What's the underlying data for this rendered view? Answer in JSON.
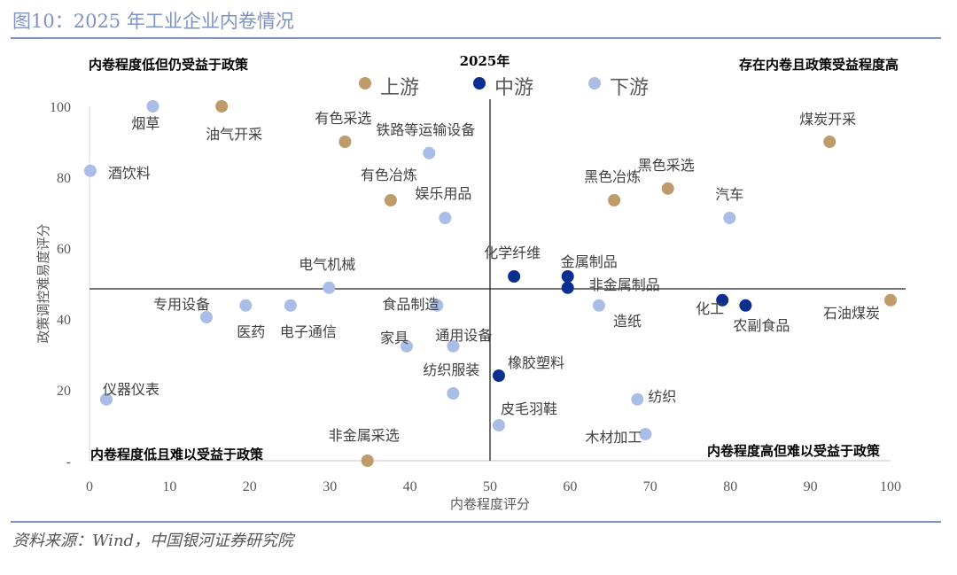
{
  "title": "图10：2025 年工业企业内卷情况",
  "source": "资料来源：Wind，中国银河证券研究院",
  "chart_data": {
    "type": "scatter",
    "title": "2025年",
    "xlabel": "内卷程度评分",
    "ylabel": "政策调控难易度评分",
    "xlim": [
      0,
      100
    ],
    "ylim": [
      0,
      100
    ],
    "xticks": [
      "0",
      "10",
      "20",
      "30",
      "40",
      "50",
      "60",
      "70",
      "80",
      "90",
      "100"
    ],
    "yticks": [
      "-",
      "20",
      "40",
      "60",
      "80",
      "100"
    ],
    "divider": {
      "x": 50,
      "y": 48.5
    },
    "quadrants": {
      "top_left": "内卷程度低但仍受益于政策",
      "top_right": "存在内卷且政策受益程度高",
      "bottom_left": "内卷程度低且难以受益于政策",
      "bottom_right": "内卷程度高但难以受益于政策"
    },
    "legend": [
      {
        "name": "上游",
        "color": "#bf9b6b"
      },
      {
        "name": "中游",
        "color": "#0b2f8e"
      },
      {
        "name": "下游",
        "color": "#a9bde6"
      }
    ],
    "points": [
      {
        "name": "烟草",
        "x": 7.9,
        "y": 100,
        "group": 2
      },
      {
        "name": "油气开采",
        "x": 16.5,
        "y": 100,
        "group": 0
      },
      {
        "name": "有色采选",
        "x": 31.9,
        "y": 90,
        "group": 0
      },
      {
        "name": "铁路等运输设备",
        "x": 42.4,
        "y": 86.8,
        "group": 2
      },
      {
        "name": "酒饮料",
        "x": 0.1,
        "y": 81.8,
        "group": 2
      },
      {
        "name": "有色冶炼",
        "x": 37.6,
        "y": 73.5,
        "group": 0
      },
      {
        "name": "娱乐用品",
        "x": 44.4,
        "y": 68.5,
        "group": 2
      },
      {
        "name": "煤炭开采",
        "x": 92.4,
        "y": 90,
        "group": 0
      },
      {
        "name": "黑色采选",
        "x": 72.2,
        "y": 76.8,
        "group": 0
      },
      {
        "name": "黑色冶炼",
        "x": 65.5,
        "y": 73.5,
        "group": 0
      },
      {
        "name": "汽车",
        "x": 79.9,
        "y": 68.5,
        "group": 2
      },
      {
        "name": "化学纤维",
        "x": 53,
        "y": 52,
        "group": 1
      },
      {
        "name": "金属制品",
        "x": 59.7,
        "y": 52,
        "group": 1
      },
      {
        "name": "非金属制品",
        "x": 59.7,
        "y": 48.8,
        "group": 1
      },
      {
        "name": "电气机械",
        "x": 29.9,
        "y": 48.8,
        "group": 2
      },
      {
        "name": "食品制造",
        "x": 43.4,
        "y": 43.8,
        "group": 2
      },
      {
        "name": "造纸",
        "x": 63.6,
        "y": 43.8,
        "group": 2
      },
      {
        "name": "化工",
        "x": 79,
        "y": 45.3,
        "group": 1
      },
      {
        "name": "农副食品",
        "x": 81.9,
        "y": 43.8,
        "group": 1
      },
      {
        "name": "石油煤炭",
        "x": 100,
        "y": 45.3,
        "group": 0
      },
      {
        "name": "专用设备",
        "x": 14.6,
        "y": 40.5,
        "group": 2
      },
      {
        "name": "医药",
        "x": 19.5,
        "y": 43.8,
        "group": 2
      },
      {
        "name": "电子通信",
        "x": 25.1,
        "y": 43.8,
        "group": 2
      },
      {
        "name": "家具",
        "x": 39.6,
        "y": 32.3,
        "group": 2
      },
      {
        "name": "通用设备",
        "x": 45.4,
        "y": 32.3,
        "group": 2
      },
      {
        "name": "纺织服装",
        "x": 45.4,
        "y": 19,
        "group": 2
      },
      {
        "name": "橡胶塑料",
        "x": 51.1,
        "y": 24,
        "group": 1
      },
      {
        "name": "纺织",
        "x": 68.4,
        "y": 17.3,
        "group": 2
      },
      {
        "name": "皮毛羽鞋",
        "x": 51.1,
        "y": 10,
        "group": 2
      },
      {
        "name": "木材加工",
        "x": 69.4,
        "y": 7.5,
        "group": 2
      },
      {
        "name": "仪器仪表",
        "x": 2.1,
        "y": 17.3,
        "group": 2
      },
      {
        "name": "非金属采选",
        "x": 34.7,
        "y": 0,
        "group": 0
      }
    ]
  }
}
